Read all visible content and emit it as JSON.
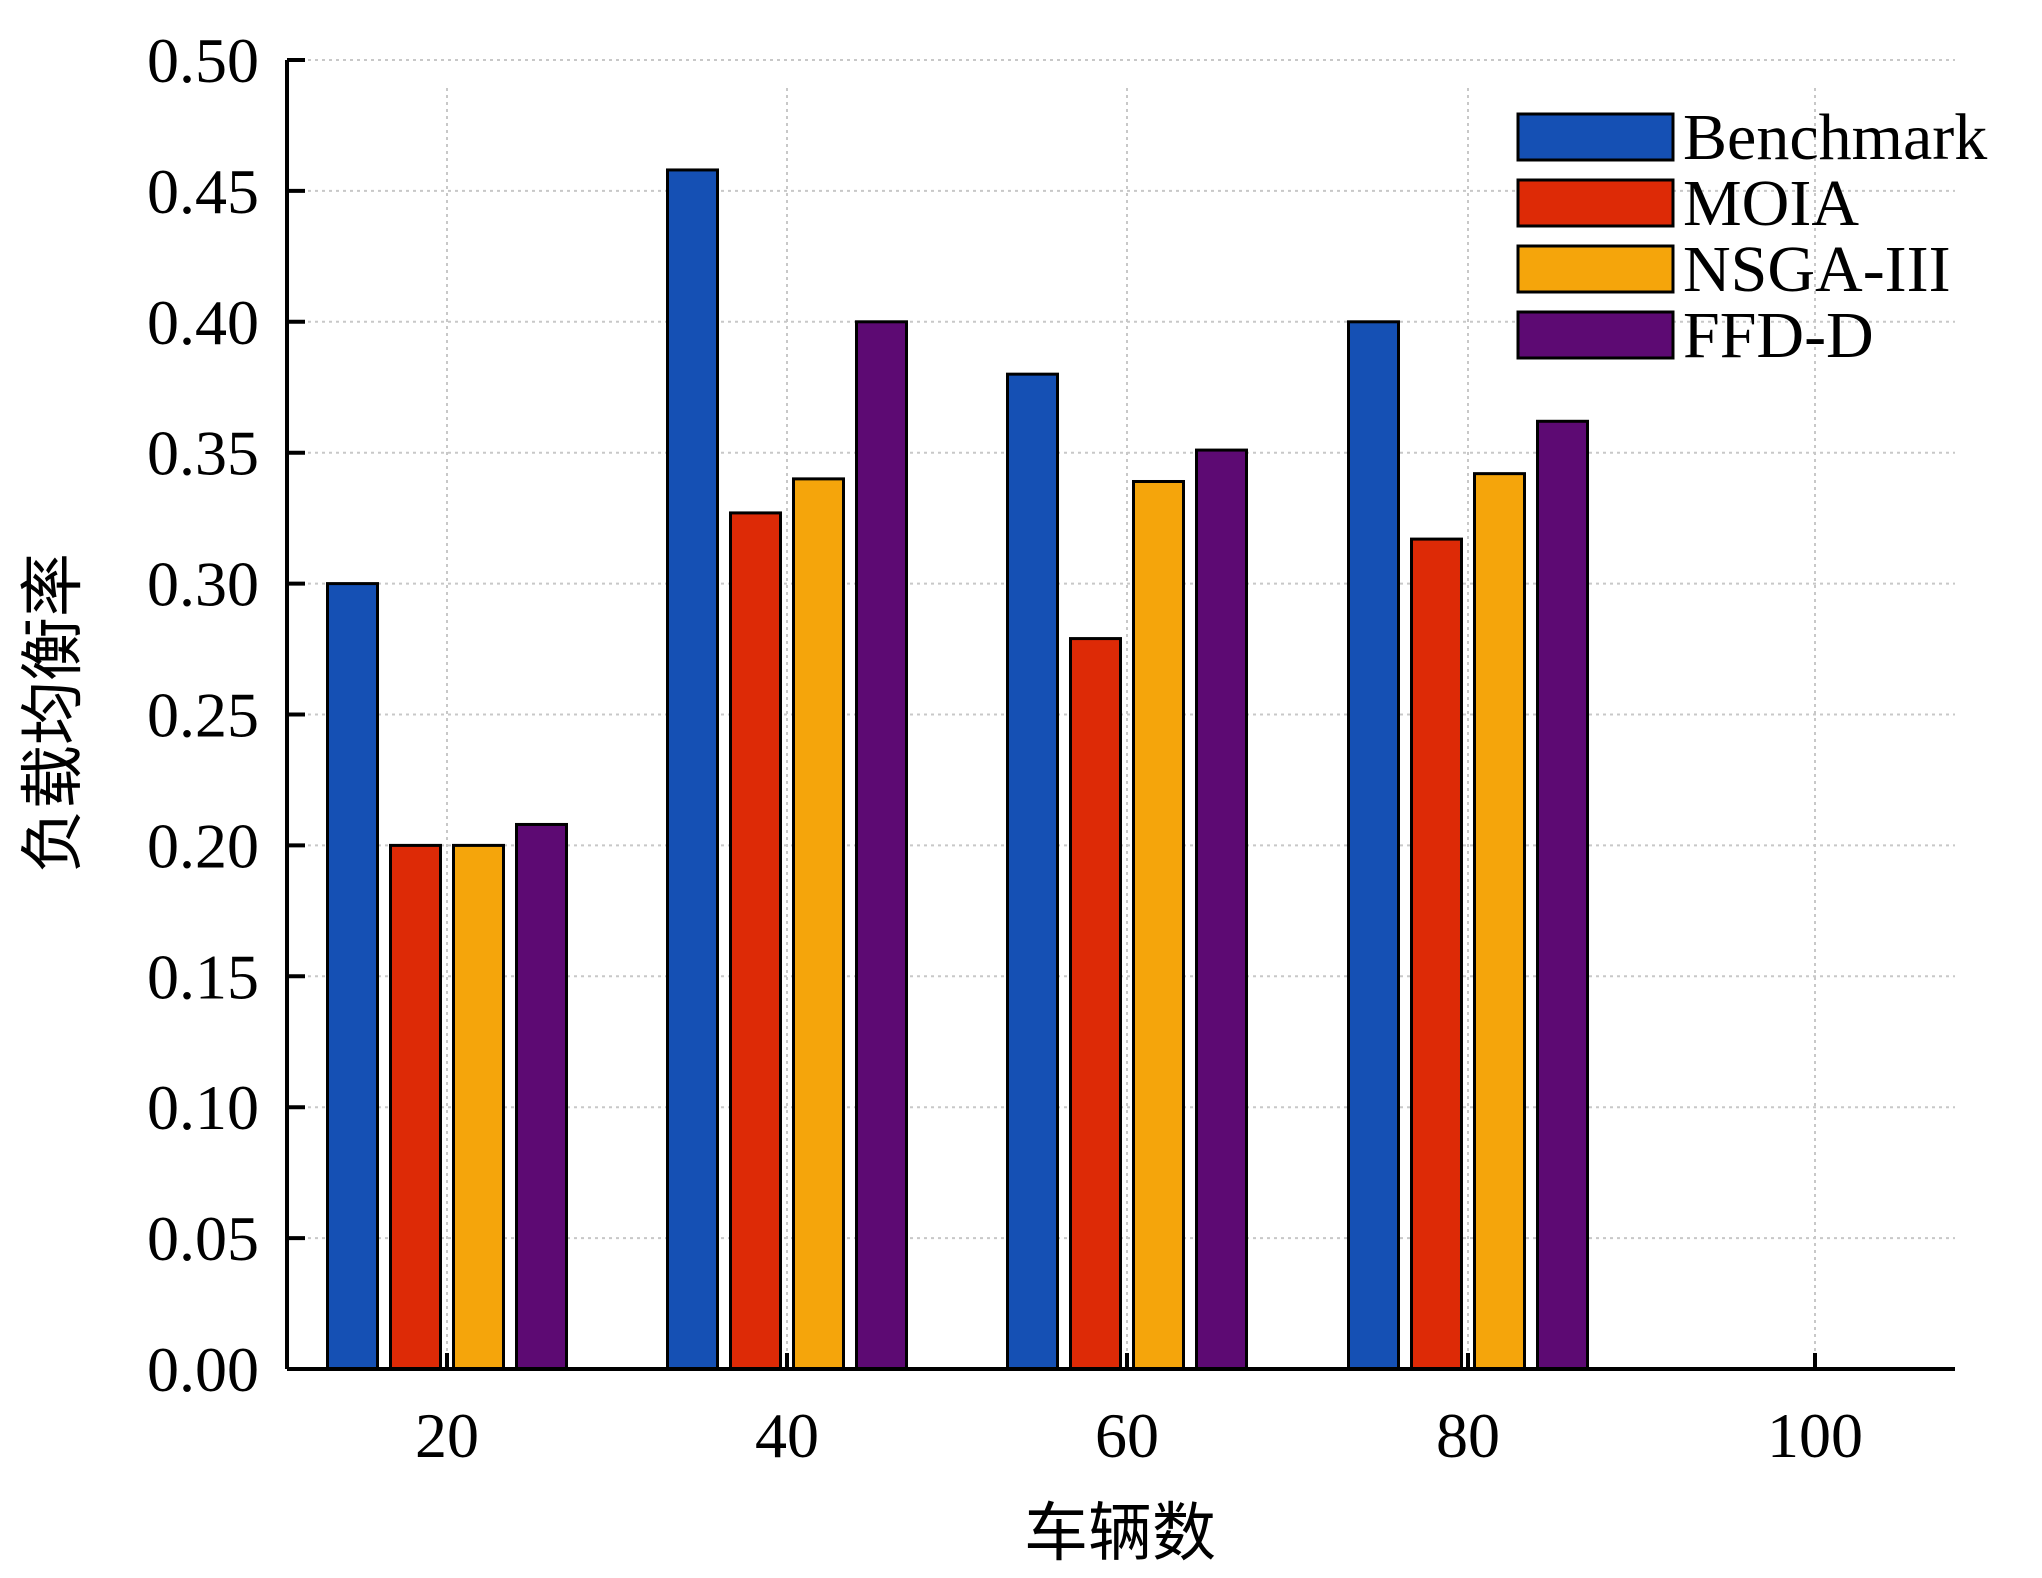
{
  "chart_data": {
    "type": "bar",
    "xlabel": "车辆数",
    "ylabel": "负载均衡率",
    "categories": [
      "20",
      "40",
      "60",
      "80",
      "100"
    ],
    "ylim": [
      0,
      0.5
    ],
    "yticks": [
      "0.00",
      "0.05",
      "0.10",
      "0.15",
      "0.20",
      "0.25",
      "0.30",
      "0.35",
      "0.40",
      "0.45",
      "0.50"
    ],
    "grid": true,
    "legend_position": "top-right",
    "series": [
      {
        "name": "Benchmark",
        "color": "#1550b4",
        "values": [
          0.3,
          0.458,
          0.38,
          0.4,
          null
        ]
      },
      {
        "name": "MOIA",
        "color": "#dd2a06",
        "values": [
          0.2,
          0.327,
          0.279,
          0.317,
          null
        ]
      },
      {
        "name": "NSGA-III",
        "color": "#f5a50b",
        "values": [
          0.2,
          0.34,
          0.339,
          0.342,
          null
        ]
      },
      {
        "name": "FFD-D",
        "color": "#5d0a73",
        "values": [
          0.208,
          0.4,
          0.351,
          0.362,
          null
        ]
      }
    ]
  }
}
